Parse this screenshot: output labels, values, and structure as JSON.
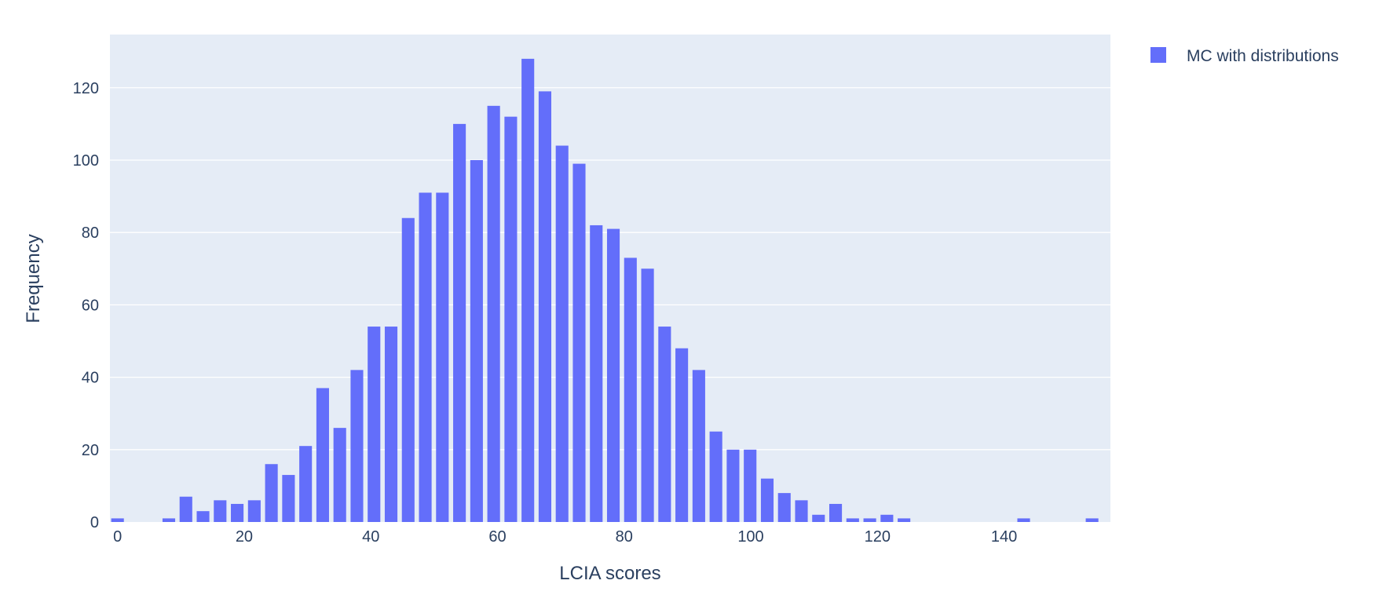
{
  "chart_data": {
    "type": "bar",
    "xlabel": "LCIA scores",
    "ylabel": "Frequency",
    "xlim": [
      -1.2,
      156.8
    ],
    "ylim": [
      0,
      134.7
    ],
    "x_ticks": [
      0,
      20,
      40,
      60,
      80,
      100,
      120,
      140
    ],
    "y_ticks": [
      0,
      20,
      40,
      60,
      80,
      100,
      120
    ],
    "bin_width": 2.7,
    "grid": true,
    "legend_position": "top-right",
    "colors": {
      "bar": "#636efa",
      "plot_bg": "#e5ecf6",
      "grid": "#ffffff",
      "text": "#2a3f5f"
    },
    "series": [
      {
        "name": "MC with distributions",
        "x": [
          0,
          2.7,
          5.4,
          8.1,
          10.8,
          13.5,
          16.2,
          18.9,
          21.6,
          24.3,
          27,
          29.7,
          32.4,
          35.1,
          37.8,
          40.5,
          43.2,
          45.9,
          48.6,
          51.3,
          54,
          56.7,
          59.4,
          62.1,
          64.8,
          67.5,
          70.2,
          72.9,
          75.6,
          78.3,
          81,
          83.7,
          86.4,
          89.1,
          91.8,
          94.5,
          97.2,
          99.9,
          102.6,
          105.3,
          108,
          110.7,
          113.4,
          116.1,
          118.8,
          121.5,
          124.2,
          126.9,
          129.6,
          132.3,
          135,
          137.7,
          140.4,
          143.1,
          145.8,
          148.5,
          151.2,
          153.9
        ],
        "values": [
          1,
          0,
          0,
          1,
          7,
          3,
          6,
          5,
          6,
          16,
          13,
          21,
          37,
          26,
          42,
          54,
          54,
          84,
          91,
          91,
          110,
          100,
          115,
          112,
          128,
          119,
          104,
          99,
          82,
          81,
          73,
          70,
          54,
          48,
          42,
          25,
          20,
          20,
          12,
          8,
          6,
          2,
          5,
          1,
          1,
          2,
          1,
          0,
          0,
          0,
          0,
          0,
          0,
          1,
          0,
          0,
          0,
          1
        ]
      }
    ]
  }
}
